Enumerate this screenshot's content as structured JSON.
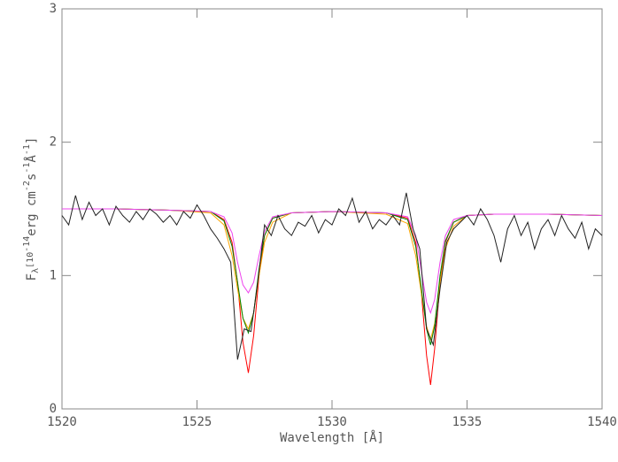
{
  "chart_data": {
    "type": "line",
    "xlabel": "Wavelength [Å]",
    "ylabel_parts": [
      "F",
      "λ",
      "[10",
      "-14",
      "erg cm",
      "-2",
      "s",
      "-1",
      "Å",
      "-1",
      "]"
    ],
    "xlim": [
      1520,
      1540
    ],
    "ylim": [
      0,
      3
    ],
    "xticks": [
      1520,
      1525,
      1530,
      1535,
      1540
    ],
    "yticks": [
      0,
      1,
      2,
      3
    ],
    "series": [
      {
        "color": "#ff0000",
        "x": [
          1520,
          1522,
          1524,
          1525.5,
          1526.0,
          1526.3,
          1526.5,
          1526.7,
          1526.9,
          1527.1,
          1527.3,
          1527.5,
          1527.8,
          1528.5,
          1530,
          1532,
          1532.8,
          1533.1,
          1533.3,
          1533.5,
          1533.65,
          1533.8,
          1534.0,
          1534.2,
          1534.5,
          1535,
          1536,
          1538,
          1540
        ],
        "values": [
          1.5,
          1.5,
          1.49,
          1.48,
          1.42,
          1.25,
          0.95,
          0.5,
          0.27,
          0.55,
          1.0,
          1.3,
          1.43,
          1.47,
          1.48,
          1.47,
          1.43,
          1.25,
          0.9,
          0.4,
          0.18,
          0.45,
          0.95,
          1.25,
          1.4,
          1.45,
          1.46,
          1.46,
          1.45
        ]
      },
      {
        "color": "#ffa500",
        "x": [
          1520,
          1522,
          1524,
          1525.5,
          1526.0,
          1526.3,
          1526.5,
          1526.7,
          1526.9,
          1527.1,
          1527.3,
          1527.5,
          1527.8,
          1528.5,
          1530,
          1532,
          1532.8,
          1533.1,
          1533.3,
          1533.5,
          1533.65,
          1533.8,
          1534.0,
          1534.2,
          1534.5,
          1535,
          1536,
          1538,
          1540
        ],
        "values": [
          1.5,
          1.5,
          1.49,
          1.47,
          1.38,
          1.15,
          0.9,
          0.68,
          0.6,
          0.72,
          1.0,
          1.25,
          1.4,
          1.47,
          1.48,
          1.46,
          1.39,
          1.15,
          0.88,
          0.62,
          0.52,
          0.64,
          0.95,
          1.2,
          1.37,
          1.45,
          1.46,
          1.46,
          1.45
        ]
      },
      {
        "color": "#008000",
        "x": [
          1520,
          1522,
          1524,
          1525.5,
          1526.0,
          1526.3,
          1526.5,
          1526.7,
          1526.9,
          1527.1,
          1527.3,
          1527.5,
          1527.8,
          1528.5,
          1530,
          1532,
          1532.8,
          1533.1,
          1533.3,
          1533.5,
          1533.65,
          1533.8,
          1534.0,
          1534.2,
          1534.5,
          1535,
          1536,
          1538,
          1540
        ],
        "values": [
          1.5,
          1.5,
          1.49,
          1.48,
          1.41,
          1.22,
          0.95,
          0.68,
          0.57,
          0.72,
          1.05,
          1.3,
          1.43,
          1.47,
          1.48,
          1.47,
          1.42,
          1.22,
          0.92,
          0.6,
          0.48,
          0.62,
          1.0,
          1.26,
          1.4,
          1.45,
          1.46,
          1.46,
          1.45
        ]
      },
      {
        "color": "#ee44ee",
        "x": [
          1520,
          1522,
          1524,
          1525.5,
          1526.0,
          1526.3,
          1526.5,
          1526.7,
          1526.9,
          1527.1,
          1527.3,
          1527.5,
          1527.8,
          1528.5,
          1530,
          1532,
          1532.8,
          1533.1,
          1533.3,
          1533.5,
          1533.65,
          1533.8,
          1534.0,
          1534.2,
          1534.5,
          1535,
          1536,
          1538,
          1540
        ],
        "values": [
          1.5,
          1.5,
          1.49,
          1.48,
          1.44,
          1.32,
          1.1,
          0.93,
          0.87,
          0.95,
          1.15,
          1.33,
          1.44,
          1.47,
          1.48,
          1.47,
          1.44,
          1.3,
          1.05,
          0.8,
          0.72,
          0.82,
          1.1,
          1.3,
          1.42,
          1.45,
          1.46,
          1.46,
          1.45
        ]
      },
      {
        "color": "#222222",
        "x": [
          1520,
          1520.25,
          1520.5,
          1520.75,
          1521,
          1521.25,
          1521.5,
          1521.75,
          1522,
          1522.25,
          1522.5,
          1522.75,
          1523,
          1523.25,
          1523.5,
          1523.75,
          1524,
          1524.25,
          1524.5,
          1524.75,
          1525,
          1525.25,
          1525.5,
          1525.75,
          1526,
          1526.25,
          1526.5,
          1526.75,
          1527,
          1527.25,
          1527.5,
          1527.75,
          1528,
          1528.25,
          1528.5,
          1528.75,
          1529,
          1529.25,
          1529.5,
          1529.75,
          1530,
          1530.25,
          1530.5,
          1530.75,
          1531,
          1531.25,
          1531.5,
          1531.75,
          1532,
          1532.25,
          1532.5,
          1532.75,
          1533,
          1533.25,
          1533.5,
          1533.75,
          1534,
          1534.25,
          1534.5,
          1534.75,
          1535,
          1535.25,
          1535.5,
          1535.75,
          1536,
          1536.25,
          1536.5,
          1536.75,
          1537,
          1537.25,
          1537.5,
          1537.75,
          1538,
          1538.25,
          1538.5,
          1538.75,
          1539,
          1539.25,
          1539.5,
          1539.75,
          1540
        ],
        "values": [
          1.45,
          1.38,
          1.6,
          1.42,
          1.55,
          1.45,
          1.5,
          1.38,
          1.52,
          1.45,
          1.4,
          1.48,
          1.42,
          1.5,
          1.46,
          1.4,
          1.45,
          1.38,
          1.48,
          1.43,
          1.53,
          1.45,
          1.35,
          1.28,
          1.2,
          1.1,
          0.37,
          0.6,
          0.58,
          0.95,
          1.38,
          1.3,
          1.45,
          1.35,
          1.3,
          1.4,
          1.37,
          1.45,
          1.32,
          1.42,
          1.38,
          1.5,
          1.45,
          1.58,
          1.4,
          1.48,
          1.35,
          1.42,
          1.38,
          1.45,
          1.38,
          1.62,
          1.35,
          1.2,
          0.6,
          0.48,
          0.9,
          1.25,
          1.35,
          1.4,
          1.45,
          1.38,
          1.5,
          1.42,
          1.3,
          1.1,
          1.35,
          1.45,
          1.3,
          1.4,
          1.2,
          1.35,
          1.42,
          1.3,
          1.45,
          1.35,
          1.28,
          1.4,
          1.2,
          1.35,
          1.3
        ]
      }
    ]
  }
}
